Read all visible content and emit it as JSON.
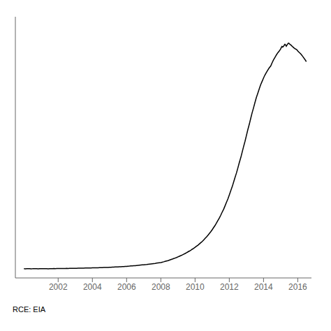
{
  "chart_data": {
    "type": "line",
    "annotations": [
      "RCE: EIA"
    ],
    "color": "#000000",
    "xlim": [
      1999.5,
      2016.8
    ],
    "xticks": [
      2002,
      2004,
      2006,
      2008,
      2010,
      2012,
      2014,
      2016
    ],
    "ylim": [
      0,
      5500
    ],
    "tick_labels": "x",
    "grid": false,
    "x": [
      2000.0,
      2000.08,
      2000.17,
      2000.25,
      2000.33,
      2000.42,
      2000.5,
      2000.58,
      2000.67,
      2000.75,
      2000.83,
      2000.92,
      2001.0,
      2001.08,
      2001.17,
      2001.25,
      2001.33,
      2001.42,
      2001.5,
      2001.58,
      2001.67,
      2001.75,
      2001.83,
      2001.92,
      2002.0,
      2002.08,
      2002.17,
      2002.25,
      2002.33,
      2002.42,
      2002.5,
      2002.58,
      2002.67,
      2002.75,
      2002.83,
      2002.92,
      2003.0,
      2003.08,
      2003.17,
      2003.25,
      2003.33,
      2003.42,
      2003.5,
      2003.58,
      2003.67,
      2003.75,
      2003.83,
      2003.92,
      2004.0,
      2004.08,
      2004.17,
      2004.25,
      2004.33,
      2004.42,
      2004.5,
      2004.58,
      2004.67,
      2004.75,
      2004.83,
      2004.92,
      2005.0,
      2005.08,
      2005.17,
      2005.25,
      2005.33,
      2005.42,
      2005.5,
      2005.58,
      2005.67,
      2005.75,
      2005.83,
      2005.92,
      2006.0,
      2006.08,
      2006.17,
      2006.25,
      2006.33,
      2006.42,
      2006.5,
      2006.58,
      2006.67,
      2006.75,
      2006.83,
      2006.92,
      2007.0,
      2007.08,
      2007.17,
      2007.25,
      2007.33,
      2007.42,
      2007.5,
      2007.58,
      2007.67,
      2007.75,
      2007.83,
      2007.92,
      2008.0,
      2008.08,
      2008.17,
      2008.25,
      2008.33,
      2008.42,
      2008.5,
      2008.58,
      2008.67,
      2008.75,
      2008.83,
      2008.92,
      2009.0,
      2009.08,
      2009.17,
      2009.25,
      2009.33,
      2009.42,
      2009.5,
      2009.58,
      2009.67,
      2009.75,
      2009.83,
      2009.92,
      2010.0,
      2010.08,
      2010.17,
      2010.25,
      2010.33,
      2010.42,
      2010.5,
      2010.58,
      2010.67,
      2010.75,
      2010.83,
      2010.92,
      2011.0,
      2011.08,
      2011.17,
      2011.25,
      2011.33,
      2011.42,
      2011.5,
      2011.58,
      2011.67,
      2011.75,
      2011.83,
      2011.92,
      2012.0,
      2012.08,
      2012.17,
      2012.25,
      2012.33,
      2012.42,
      2012.5,
      2012.58,
      2012.67,
      2012.75,
      2012.83,
      2012.92,
      2013.0,
      2013.08,
      2013.17,
      2013.25,
      2013.33,
      2013.42,
      2013.5,
      2013.58,
      2013.67,
      2013.75,
      2013.83,
      2013.92,
      2014.0,
      2014.08,
      2014.17,
      2014.25,
      2014.33,
      2014.42,
      2014.5,
      2014.58,
      2014.67,
      2014.75,
      2014.83,
      2014.92,
      2015.0,
      2015.04,
      2015.08,
      2015.12,
      2015.17,
      2015.21,
      2015.25,
      2015.29,
      2015.33,
      2015.38,
      2015.42,
      2015.46,
      2015.5,
      2015.54,
      2015.58,
      2015.63,
      2015.67,
      2015.71,
      2015.75,
      2015.79,
      2015.83,
      2015.88,
      2015.92,
      2015.96,
      2016.0,
      2016.08,
      2016.17,
      2016.25,
      2016.33,
      2016.42,
      2016.5
    ],
    "values": [
      195,
      193,
      196,
      194,
      195,
      193,
      194,
      196,
      194,
      195,
      193,
      195,
      196,
      195,
      194,
      196,
      195,
      193,
      195,
      196,
      195,
      197,
      196,
      197,
      198,
      198,
      200,
      199,
      200,
      199,
      201,
      200,
      202,
      201,
      202,
      203,
      204,
      204,
      205,
      205,
      206,
      207,
      207,
      208,
      209,
      210,
      210,
      211,
      212,
      213,
      214,
      215,
      215,
      216,
      217,
      218,
      219,
      220,
      221,
      222,
      224,
      225,
      227,
      228,
      230,
      232,
      233,
      235,
      237,
      239,
      240,
      242,
      244,
      247,
      249,
      252,
      254,
      257,
      259,
      262,
      265,
      268,
      271,
      274,
      277,
      280,
      283,
      287,
      290,
      294,
      298,
      302,
      306,
      311,
      315,
      320,
      325,
      332,
      340,
      348,
      356,
      365,
      375,
      385,
      396,
      407,
      418,
      430,
      443,
      456,
      470,
      484,
      499,
      515,
      531,
      548,
      566,
      584,
      603,
      623,
      644,
      666,
      690,
      715,
      741,
      769,
      799,
      830,
      863,
      898,
      935,
      974,
      1015,
      1059,
      1106,
      1155,
      1207,
      1262,
      1320,
      1382,
      1447,
      1516,
      1589,
      1666,
      1747,
      1832,
      1921,
      2014,
      2111,
      2211,
      2315,
      2422,
      2532,
      2645,
      2760,
      2878,
      2998,
      3118,
      3238,
      3357,
      3473,
      3586,
      3694,
      3797,
      3893,
      3983,
      4066,
      4142,
      4210,
      4272,
      4328,
      4378,
      4423,
      4463,
      4530,
      4590,
      4645,
      4695,
      4740,
      4778,
      4820,
      4855,
      4875,
      4860,
      4880,
      4900,
      4920,
      4905,
      4880,
      4910,
      4930,
      4945,
      4935,
      4920,
      4910,
      4895,
      4880,
      4865,
      4855,
      4840,
      4830,
      4820,
      4810,
      4800,
      4780,
      4750,
      4720,
      4685,
      4645,
      4600,
      4555
    ]
  }
}
